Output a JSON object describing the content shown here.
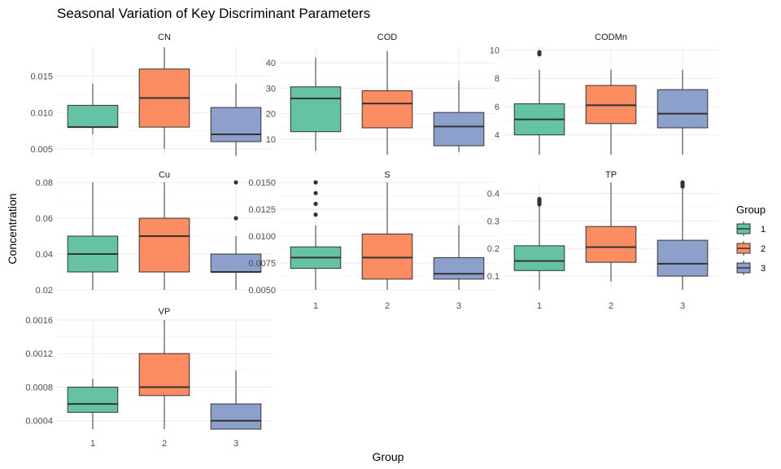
{
  "chart_data": {
    "type": "boxplot",
    "title": "Seasonal Variation of Key Discriminant Parameters",
    "xlabel": "Group",
    "ylabel": "Concentration",
    "legend": {
      "title": "Group",
      "placement": "right",
      "entries": [
        "1",
        "2",
        "3"
      ]
    },
    "colors": {
      "1": "#66c2a5",
      "2": "#fc8d62",
      "3": "#8da0cb"
    },
    "categories": [
      "1",
      "2",
      "3"
    ],
    "grid": true,
    "panels": [
      {
        "name": "CN",
        "ylim": [
          0.0042,
          0.019
        ],
        "yticks": [
          0.005,
          0.01,
          0.015
        ],
        "ytick_labels": [
          "0.005",
          "0.010",
          "0.015"
        ],
        "show_x_ticks": false,
        "boxes": [
          {
            "group": "1",
            "min": 0.007,
            "q1": 0.008,
            "median": 0.008,
            "q3": 0.011,
            "max": 0.014,
            "outliers": []
          },
          {
            "group": "2",
            "min": 0.005,
            "q1": 0.008,
            "median": 0.012,
            "q3": 0.016,
            "max": 0.019,
            "outliers": []
          },
          {
            "group": "3",
            "min": 0.004,
            "q1": 0.006,
            "median": 0.007,
            "q3": 0.0107,
            "max": 0.014,
            "outliers": []
          }
        ]
      },
      {
        "name": "COD",
        "ylim": [
          4,
          46
        ],
        "yticks": [
          10,
          20,
          30,
          40
        ],
        "ytick_labels": [
          "10",
          "20",
          "30",
          "40"
        ],
        "show_x_ticks": false,
        "boxes": [
          {
            "group": "1",
            "min": 5.5,
            "q1": 13,
            "median": 26,
            "q3": 30.5,
            "max": 42,
            "outliers": []
          },
          {
            "group": "2",
            "min": 4,
            "q1": 14.5,
            "median": 24,
            "q3": 29,
            "max": 44.5,
            "outliers": []
          },
          {
            "group": "3",
            "min": 5,
            "q1": 7.5,
            "median": 15,
            "q3": 20.5,
            "max": 33,
            "outliers": []
          }
        ]
      },
      {
        "name": "CODMn",
        "ylim": [
          2.6,
          10.2
        ],
        "yticks": [
          4,
          6,
          8,
          10
        ],
        "ytick_labels": [
          "4",
          "6",
          "8",
          "10"
        ],
        "show_x_ticks": false,
        "boxes": [
          {
            "group": "1",
            "min": 2.6,
            "q1": 4.0,
            "median": 5.1,
            "q3": 6.2,
            "max": 8.6,
            "outliers": [
              9.7,
              9.8,
              9.85
            ]
          },
          {
            "group": "2",
            "min": 2.6,
            "q1": 4.8,
            "median": 6.1,
            "q3": 7.5,
            "max": 8.6,
            "outliers": []
          },
          {
            "group": "3",
            "min": 2.6,
            "q1": 4.5,
            "median": 5.5,
            "q3": 7.2,
            "max": 8.6,
            "outliers": []
          }
        ]
      },
      {
        "name": "Cu",
        "ylim": [
          0.02,
          0.08
        ],
        "yticks": [
          0.02,
          0.04,
          0.06,
          0.08
        ],
        "ytick_labels": [
          "0.02",
          "0.04",
          "0.06",
          "0.08"
        ],
        "show_x_ticks": false,
        "boxes": [
          {
            "group": "1",
            "min": 0.02,
            "q1": 0.03,
            "median": 0.04,
            "q3": 0.05,
            "max": 0.08,
            "outliers": []
          },
          {
            "group": "2",
            "min": 0.02,
            "q1": 0.03,
            "median": 0.05,
            "q3": 0.06,
            "max": 0.08,
            "outliers": []
          },
          {
            "group": "3",
            "min": 0.02,
            "q1": 0.03,
            "median": 0.03,
            "q3": 0.04,
            "max": 0.05,
            "outliers": [
              0.06,
              0.08
            ]
          }
        ]
      },
      {
        "name": "S",
        "ylim": [
          0.005,
          0.015
        ],
        "yticks": [
          0.005,
          0.0075,
          0.01,
          0.0125,
          0.015
        ],
        "ytick_labels": [
          "0.0050",
          "0.0075",
          "0.0100",
          "0.0125",
          "0.0150"
        ],
        "show_x_ticks": true,
        "boxes": [
          {
            "group": "1",
            "min": 0.005,
            "q1": 0.007,
            "median": 0.008,
            "q3": 0.009,
            "max": 0.011,
            "outliers": [
              0.012,
              0.013,
              0.014,
              0.015
            ]
          },
          {
            "group": "2",
            "min": 0.005,
            "q1": 0.006,
            "median": 0.008,
            "q3": 0.0102,
            "max": 0.015,
            "outliers": []
          },
          {
            "group": "3",
            "min": 0.005,
            "q1": 0.006,
            "median": 0.0065,
            "q3": 0.008,
            "max": 0.011,
            "outliers": []
          }
        ]
      },
      {
        "name": "TP",
        "ylim": [
          0.05,
          0.44
        ],
        "yticks": [
          0.1,
          0.2,
          0.3,
          0.4
        ],
        "ytick_labels": [
          "0.1",
          "0.2",
          "0.3",
          "0.4"
        ],
        "show_x_ticks": true,
        "boxes": [
          {
            "group": "1",
            "min": 0.05,
            "q1": 0.12,
            "median": 0.155,
            "q3": 0.21,
            "max": 0.355,
            "outliers": [
              0.36,
              0.365,
              0.37,
              0.375,
              0.38
            ]
          },
          {
            "group": "2",
            "min": 0.08,
            "q1": 0.15,
            "median": 0.205,
            "q3": 0.28,
            "max": 0.44,
            "outliers": []
          },
          {
            "group": "3",
            "min": 0.05,
            "q1": 0.1,
            "median": 0.145,
            "q3": 0.23,
            "max": 0.42,
            "outliers": [
              0.425,
              0.43,
              0.435,
              0.44
            ]
          }
        ]
      },
      {
        "name": "VP",
        "ylim": [
          0.0003,
          0.0016
        ],
        "yticks": [
          0.0004,
          0.0008,
          0.0012,
          0.0016
        ],
        "ytick_labels": [
          "0.0004",
          "0.0008",
          "0.0012",
          "0.0016"
        ],
        "show_x_ticks": true,
        "boxes": [
          {
            "group": "1",
            "min": 0.0003,
            "q1": 0.0005,
            "median": 0.0006,
            "q3": 0.0008,
            "max": 0.0009,
            "outliers": []
          },
          {
            "group": "2",
            "min": 0.0003,
            "q1": 0.0007,
            "median": 0.0008,
            "q3": 0.0012,
            "max": 0.0016,
            "outliers": []
          },
          {
            "group": "3",
            "min": 0.0003,
            "q1": 0.0003,
            "median": 0.0004,
            "q3": 0.0006,
            "max": 0.001,
            "outliers": []
          }
        ]
      }
    ]
  }
}
